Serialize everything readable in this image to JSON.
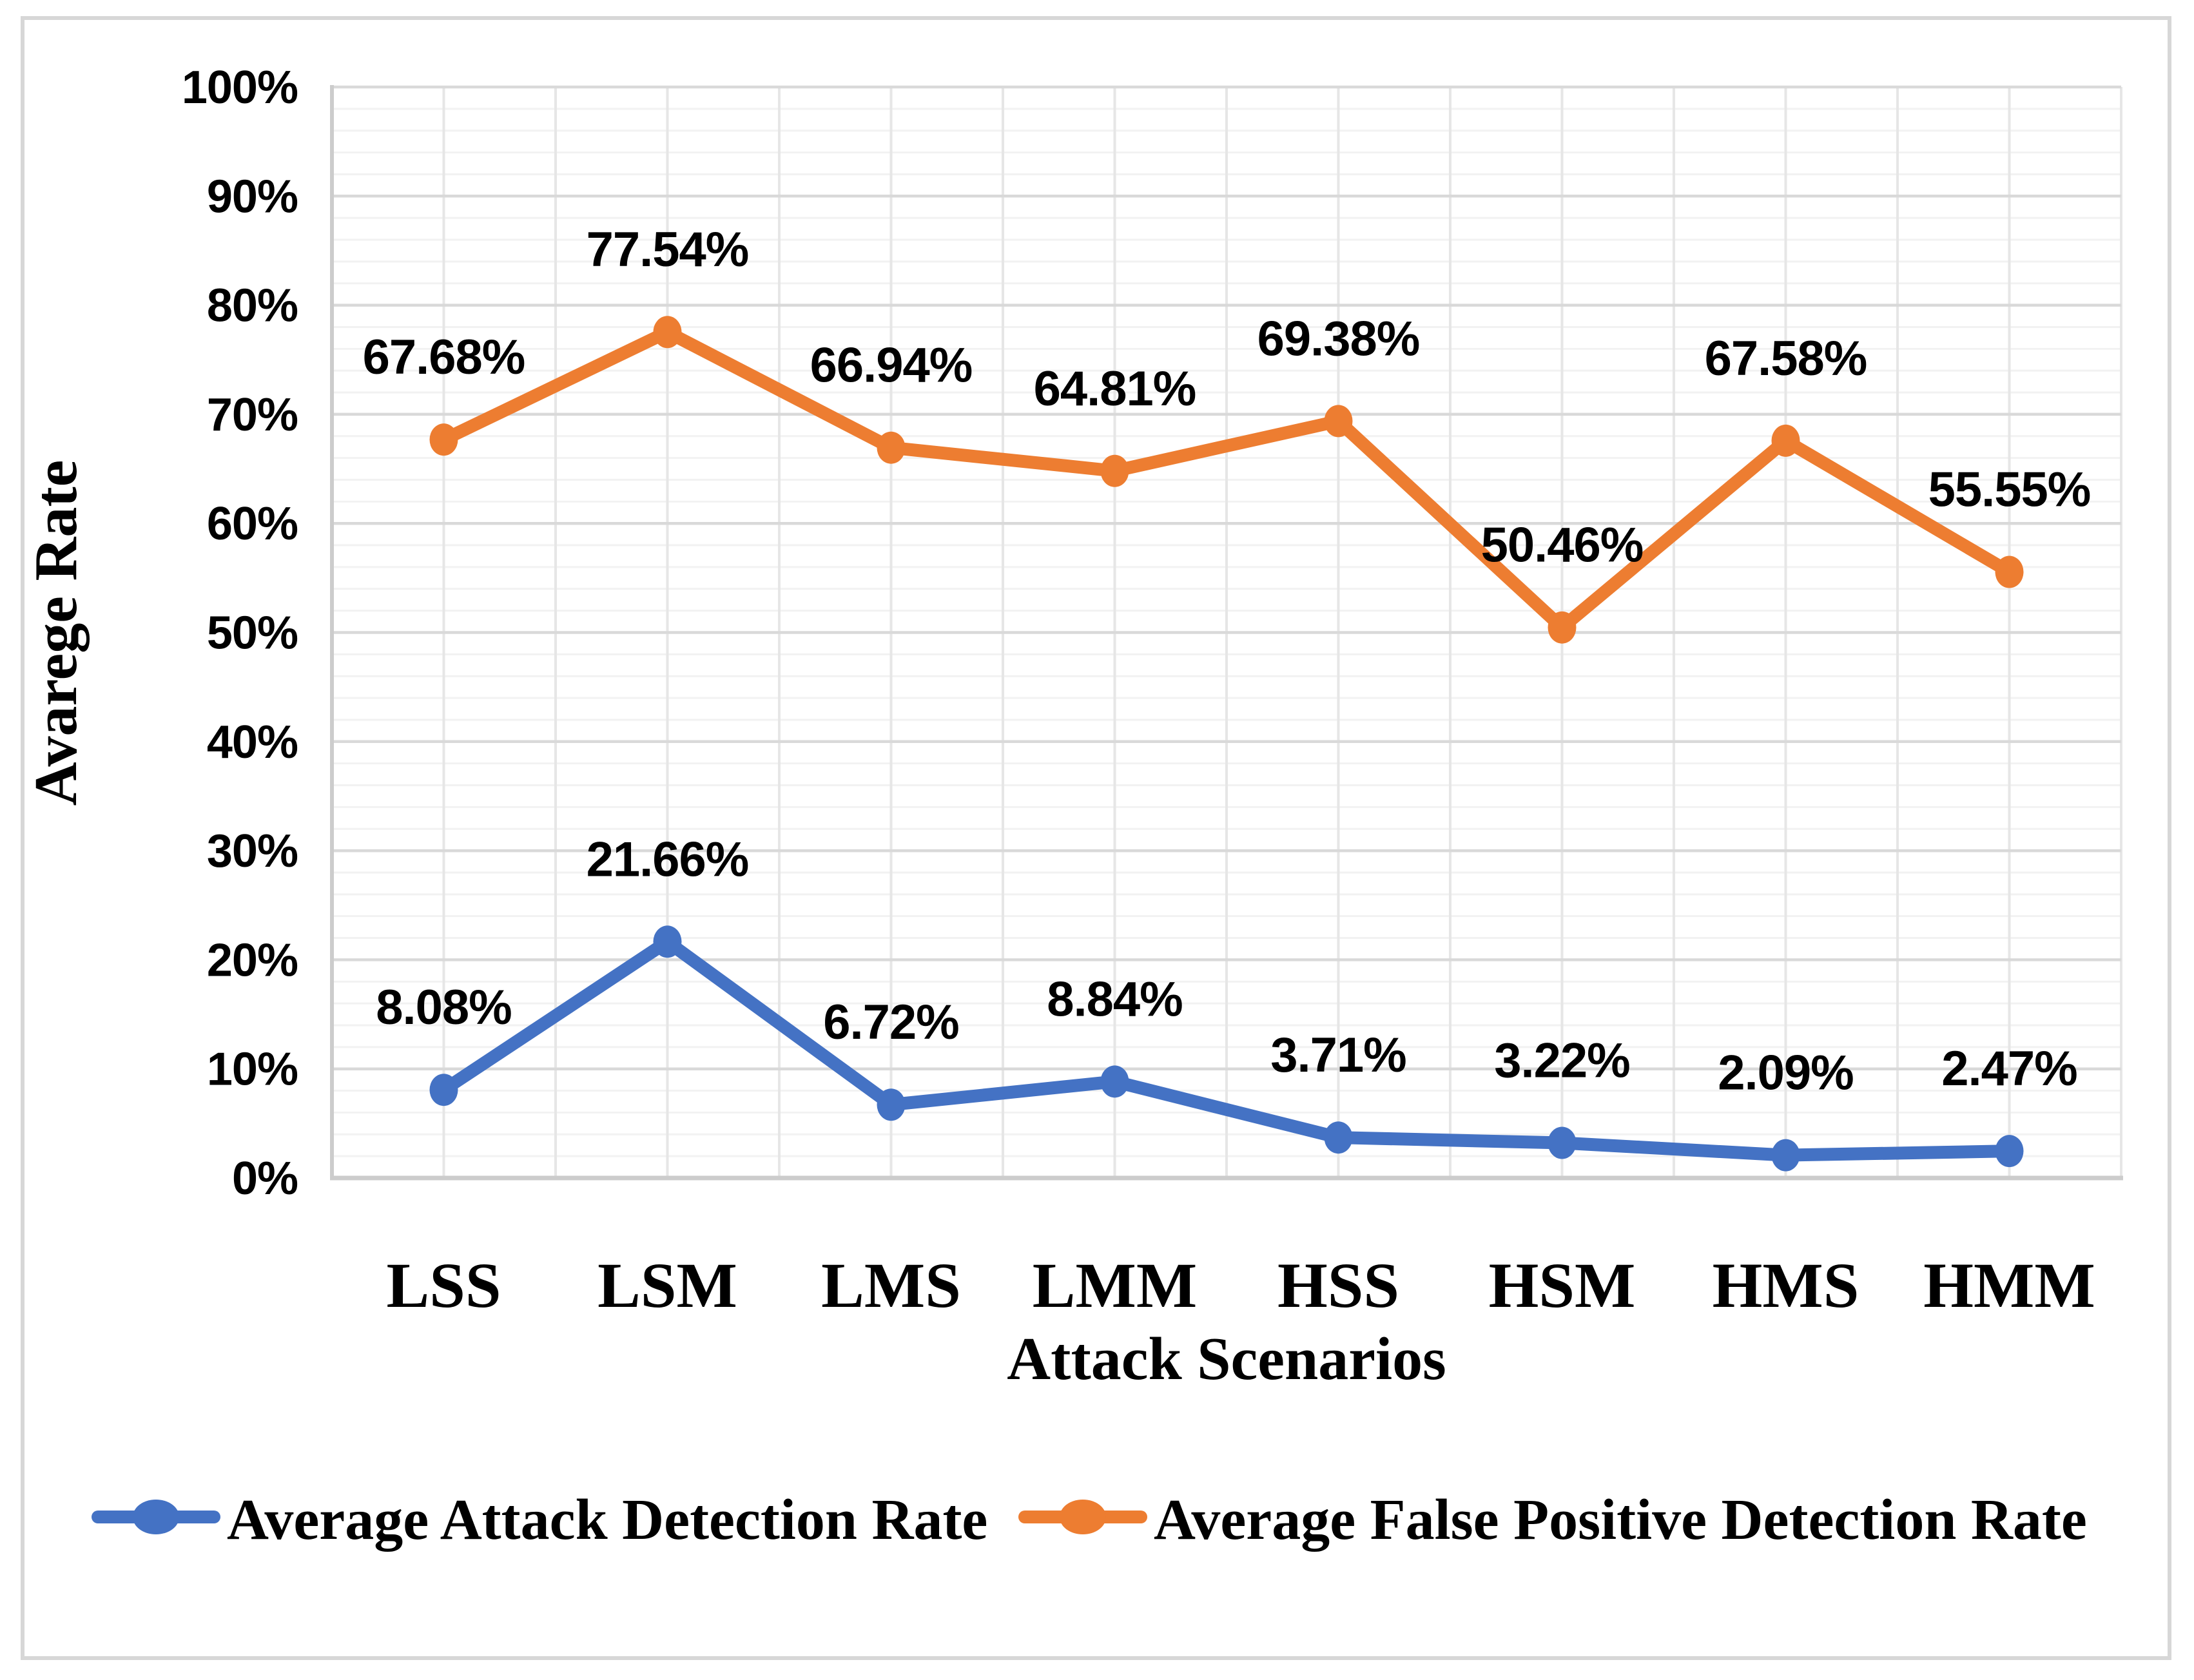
{
  "chart_data": {
    "type": "line",
    "title": "",
    "xlabel": "Attack Scenarios",
    "ylabel": "Avarege Rate",
    "categories": [
      "LSS",
      "LSM",
      "LMS",
      "LMM",
      "HSS",
      "HSM",
      "HMS",
      "HMM"
    ],
    "series": [
      {
        "name": "Average Attack Detection Rate",
        "color": "#4472C4",
        "values": [
          8.08,
          21.66,
          6.72,
          8.84,
          3.71,
          3.22,
          2.09,
          2.47
        ],
        "labels": [
          "8.08%",
          "21.66%",
          "6.72%",
          "8.84%",
          "3.71%",
          "3.22%",
          "2.09%",
          "2.47%"
        ]
      },
      {
        "name": "Average False Positive Detection Rate",
        "color": "#ED7D31",
        "values": [
          67.68,
          77.54,
          66.94,
          64.81,
          69.38,
          50.46,
          67.58,
          55.55
        ],
        "labels": [
          "67.68%",
          "77.54%",
          "66.94%",
          "64.81%",
          "69.38%",
          "50.46%",
          "67.58%",
          "55.55%"
        ]
      }
    ],
    "ylim": [
      0,
      100
    ],
    "y_ticks": [
      "0%",
      "10%",
      "20%",
      "30%",
      "40%",
      "50%",
      "60%",
      "70%",
      "80%",
      "90%",
      "100%"
    ],
    "grid": {
      "h_major_pct": 10,
      "h_minor_pct": 2,
      "vertical_lines_per_category": 2,
      "grid_on": true
    },
    "legend_position": "bottom",
    "data_label_format": "0.00%",
    "colors": {
      "minor_grid": "#F2F2F2",
      "major_grid": "#D9D9D9",
      "vertical_grid": "#E6E6E6",
      "axis_line": "#CCCCCC",
      "frame": "#D7D7D7",
      "label_text": "#000000"
    }
  }
}
